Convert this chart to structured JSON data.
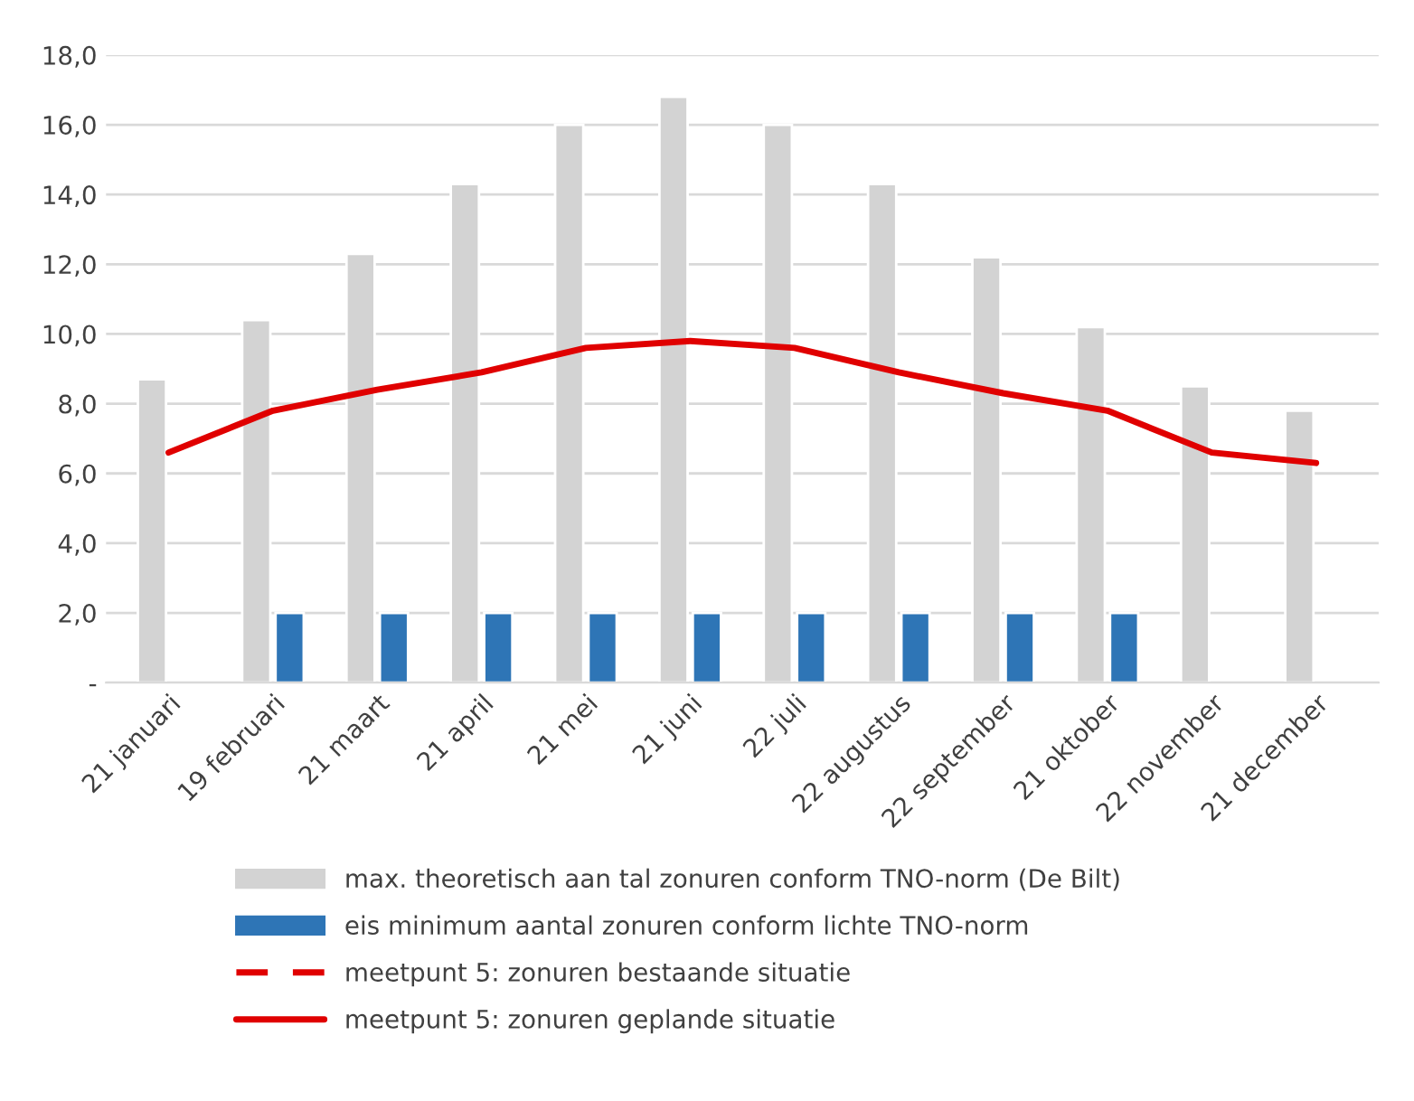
{
  "chart_data": {
    "type": "bar",
    "categories": [
      "21 januari",
      "19 februari",
      "21 maart",
      "21 april",
      "21 mei",
      "21 juni",
      "22 juli",
      "22 augustus",
      "22 september",
      "21 oktober",
      "22 november",
      "21 december"
    ],
    "series": [
      {
        "name": "max. theoretisch aan tal zonuren conform TNO-norm (De Bilt)",
        "color": "#d3d3d3",
        "values": [
          8.7,
          10.4,
          12.3,
          14.3,
          16.0,
          16.8,
          16.0,
          14.3,
          12.2,
          10.2,
          8.5,
          7.8
        ]
      },
      {
        "name": "eis minimum aantal zonuren conform lichte TNO-norm",
        "color": "#2e75b6",
        "values": [
          null,
          2.0,
          2.0,
          2.0,
          2.0,
          2.0,
          2.0,
          2.0,
          2.0,
          2.0,
          null,
          null
        ]
      },
      {
        "name": "meetpunt 5: zonuren bestaande situatie",
        "type": "line",
        "color": "#e00000",
        "line_style": "dashed",
        "values": [
          null,
          null,
          null,
          null,
          null,
          null,
          null,
          null,
          null,
          null,
          null,
          null
        ]
      },
      {
        "name": "meetpunt 5: zonuren geplande situatie",
        "type": "line",
        "color": "#e00000",
        "line_style": "solid",
        "values": [
          6.6,
          7.8,
          8.4,
          8.9,
          9.6,
          9.8,
          9.6,
          8.9,
          8.3,
          7.8,
          6.6,
          6.3
        ]
      }
    ],
    "ylim": [
      0,
      18
    ],
    "yticks": [
      {
        "value": 0,
        "label": "-"
      },
      {
        "value": 2,
        "label": "2,0"
      },
      {
        "value": 4,
        "label": "4,0"
      },
      {
        "value": 6,
        "label": "6,0"
      },
      {
        "value": 8,
        "label": "8,0"
      },
      {
        "value": 10,
        "label": "10,0"
      },
      {
        "value": 12,
        "label": "12,0"
      },
      {
        "value": 14,
        "label": "14,0"
      },
      {
        "value": 16,
        "label": "16,0"
      },
      {
        "value": 18,
        "label": "18,0"
      }
    ],
    "grid": "y",
    "legend": "bottom",
    "marker": "none"
  }
}
